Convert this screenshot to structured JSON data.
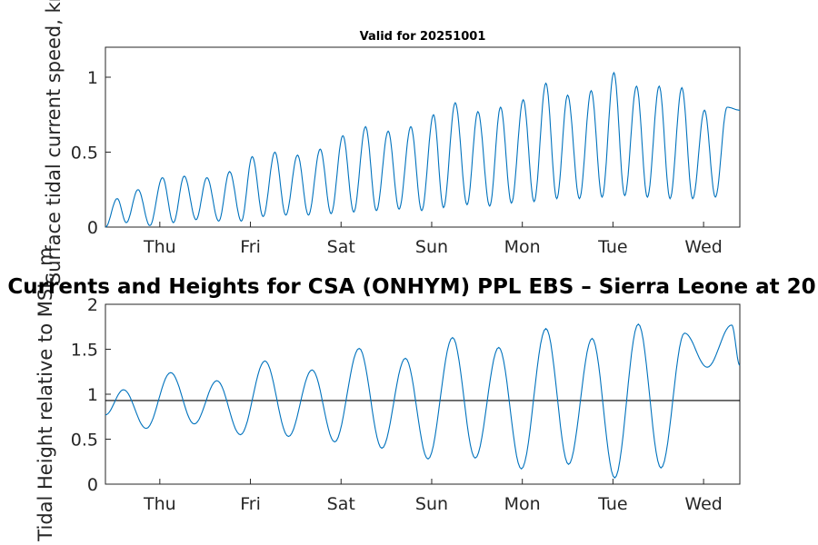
{
  "figure": {
    "main_title": "Currents and Heights for CSA (ONHYM) PPL EBS  – Sierra Leone at 20"
  },
  "chart_data": [
    {
      "type": "line",
      "title": "Valid for 20251001",
      "xlabel": "",
      "ylabel": "Surface tidal current speed, kn",
      "xlim": [
        0,
        7
      ],
      "ylim": [
        0,
        1.2
      ],
      "categories": [
        "Thu",
        "Fri",
        "Sat",
        "Sun",
        "Mon",
        "Tue",
        "Wed"
      ],
      "tick_positions": [
        0.6,
        1.6,
        2.6,
        3.6,
        4.6,
        5.6,
        6.6
      ],
      "yticks": [
        0,
        0.5,
        1
      ],
      "ytick_labels": [
        "0",
        "0.5",
        "1"
      ],
      "series": [
        {
          "name": "Surface tidal current speed",
          "color": "#0072bd",
          "x": [
            0.0,
            0.13,
            0.23,
            0.36,
            0.49,
            0.63,
            0.75,
            0.87,
            1.0,
            1.12,
            1.25,
            1.37,
            1.5,
            1.62,
            1.74,
            1.87,
            1.99,
            2.12,
            2.24,
            2.37,
            2.49,
            2.62,
            2.74,
            2.87,
            2.99,
            3.12,
            3.24,
            3.37,
            3.49,
            3.62,
            3.73,
            3.86,
            3.99,
            4.11,
            4.24,
            4.36,
            4.48,
            4.61,
            4.73,
            4.86,
            4.98,
            5.1,
            5.23,
            5.36,
            5.48,
            5.61,
            5.73,
            5.86,
            5.98,
            6.11,
            6.23,
            6.36,
            6.48,
            6.61,
            6.73,
            6.86,
            7.0
          ],
          "y": [
            0.0,
            0.19,
            0.03,
            0.25,
            0.01,
            0.33,
            0.03,
            0.34,
            0.05,
            0.33,
            0.04,
            0.37,
            0.04,
            0.47,
            0.07,
            0.5,
            0.08,
            0.48,
            0.08,
            0.52,
            0.09,
            0.61,
            0.1,
            0.67,
            0.11,
            0.64,
            0.12,
            0.67,
            0.11,
            0.75,
            0.13,
            0.83,
            0.15,
            0.77,
            0.14,
            0.8,
            0.16,
            0.85,
            0.17,
            0.96,
            0.19,
            0.88,
            0.19,
            0.91,
            0.2,
            1.03,
            0.21,
            0.94,
            0.2,
            0.94,
            0.19,
            0.93,
            0.19,
            0.78,
            0.2,
            0.8,
            0.78
          ]
        }
      ]
    },
    {
      "type": "line",
      "title": "",
      "xlabel": "",
      "ylabel": "Tidal Height relative to MSL, m",
      "xlim": [
        0,
        7
      ],
      "ylim": [
        0,
        2
      ],
      "categories": [
        "Thu",
        "Fri",
        "Sat",
        "Sun",
        "Mon",
        "Tue",
        "Wed"
      ],
      "tick_positions": [
        0.6,
        1.6,
        2.6,
        3.6,
        4.6,
        5.6,
        6.6
      ],
      "yticks": [
        0,
        0.5,
        1,
        1.5,
        2
      ],
      "ytick_labels": [
        "0",
        "0.5",
        "1",
        "1.5",
        "2"
      ],
      "reference_line": {
        "y": 0.93,
        "color": "#000000"
      },
      "series": [
        {
          "name": "Tidal height",
          "color": "#0072bd",
          "x": [
            0.0,
            0.2,
            0.45,
            0.72,
            0.98,
            1.23,
            1.49,
            1.76,
            2.02,
            2.28,
            2.53,
            2.8,
            3.05,
            3.31,
            3.56,
            3.83,
            4.08,
            4.34,
            4.59,
            4.86,
            5.11,
            5.37,
            5.62,
            5.88,
            6.13,
            6.39,
            6.64,
            6.91,
            7.0
          ],
          "y": [
            0.77,
            1.05,
            0.62,
            1.24,
            0.67,
            1.15,
            0.55,
            1.37,
            0.53,
            1.27,
            0.47,
            1.51,
            0.4,
            1.4,
            0.28,
            1.63,
            0.29,
            1.52,
            0.17,
            1.73,
            0.22,
            1.62,
            0.07,
            1.78,
            0.18,
            1.68,
            1.3,
            1.77,
            1.32
          ]
        }
      ]
    }
  ]
}
